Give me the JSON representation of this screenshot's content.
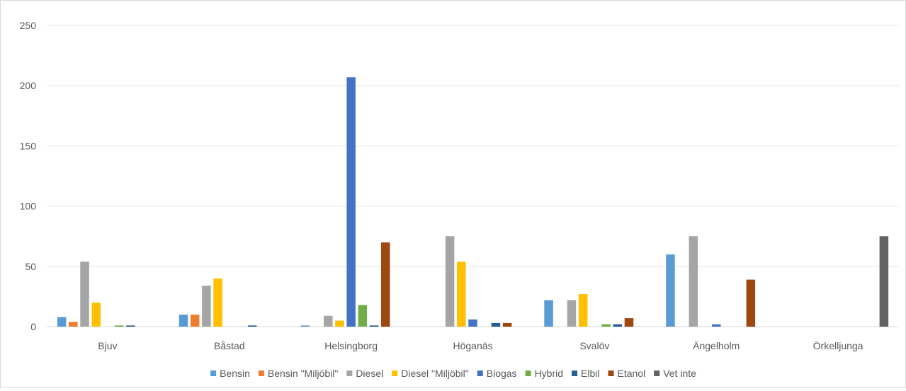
{
  "chart_data": {
    "type": "bar",
    "title": "",
    "xlabel": "",
    "ylabel": "",
    "ylim": [
      0,
      250
    ],
    "yticks": [
      0,
      50,
      100,
      150,
      200,
      250
    ],
    "grid": true,
    "legend_position": "bottom",
    "categories": [
      "Bjuv",
      "Båstad",
      "Helsingborg",
      "Höganäs",
      "Svalöv",
      "Ängelholm",
      "Örkelljunga"
    ],
    "series": [
      {
        "name": "Bensin",
        "color": "#5b9bd5",
        "values": [
          8,
          10,
          1,
          0,
          22,
          60,
          0
        ]
      },
      {
        "name": "Bensin \"Miljöbil\"",
        "color": "#ed7d31",
        "values": [
          4,
          10,
          0,
          0,
          0,
          0,
          0
        ]
      },
      {
        "name": "Diesel",
        "color": "#a5a5a5",
        "values": [
          54,
          34,
          9,
          75,
          22,
          75,
          0
        ]
      },
      {
        "name": "Diesel \"Miljöbil\"",
        "color": "#ffc000",
        "values": [
          20,
          40,
          5,
          54,
          27,
          0,
          0
        ]
      },
      {
        "name": "Biogas",
        "color": "#4472c4",
        "values": [
          0,
          0,
          207,
          6,
          0,
          2,
          0
        ]
      },
      {
        "name": "Hybrid",
        "color": "#70ad47",
        "values": [
          1,
          0,
          18,
          0,
          2,
          0,
          0
        ]
      },
      {
        "name": "Elbil",
        "color": "#255e91",
        "values": [
          1,
          1,
          1,
          3,
          2,
          0,
          0
        ]
      },
      {
        "name": "Etanol",
        "color": "#9e480e",
        "values": [
          0,
          0,
          70,
          3,
          7,
          39,
          0
        ]
      },
      {
        "name": "Vet inte",
        "color": "#636363",
        "values": [
          0,
          0,
          0,
          0,
          0,
          0,
          75
        ]
      }
    ]
  }
}
